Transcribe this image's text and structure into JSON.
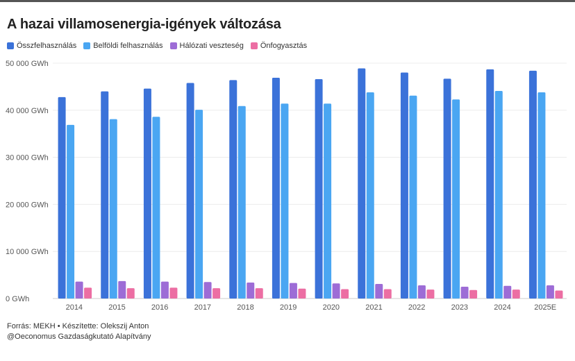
{
  "title": "A hazai villamosenergia-igények változása",
  "footer": {
    "source": "Forrás: MEKH • Készítette: Olekszij Anton",
    "credit": "@Oeconomus Gazdaságkutató Alapítvány"
  },
  "chart_data": {
    "type": "bar",
    "title": "A hazai villamosenergia-igények változása",
    "xlabel": "",
    "ylabel": "",
    "ylim": [
      0,
      50000
    ],
    "yticks": [
      0,
      10000,
      20000,
      30000,
      40000,
      50000
    ],
    "ytick_labels": [
      "0 GWh",
      "10 000 GWh",
      "20 000 GWh",
      "30 000 GWh",
      "40 000 GWh",
      "50 000 GWh"
    ],
    "grid": true,
    "legend_position": "top-left",
    "categories": [
      "2014",
      "2015",
      "2016",
      "2017",
      "2018",
      "2019",
      "2020",
      "2021",
      "2022",
      "2023",
      "2024",
      "2025E"
    ],
    "series": [
      {
        "name": "Összfelhasználás",
        "color": "#3b72d9",
        "values": [
          42800,
          44000,
          44600,
          45800,
          46400,
          46900,
          46600,
          48900,
          48000,
          46700,
          48700,
          48400
        ]
      },
      {
        "name": "Belföldi felhasználás",
        "color": "#4aa6f2",
        "values": [
          36900,
          38100,
          38600,
          40100,
          40900,
          41400,
          41400,
          43800,
          43100,
          42300,
          44100,
          43800
        ]
      },
      {
        "name": "Hálózati veszteség",
        "color": "#9d6cd6",
        "values": [
          3600,
          3700,
          3600,
          3500,
          3400,
          3300,
          3200,
          3100,
          2800,
          2500,
          2700,
          2800
        ]
      },
      {
        "name": "Önfogyasztás",
        "color": "#ec6ea3",
        "values": [
          2300,
          2200,
          2300,
          2200,
          2200,
          2100,
          2000,
          2000,
          1900,
          1800,
          1900,
          1700
        ]
      }
    ]
  }
}
